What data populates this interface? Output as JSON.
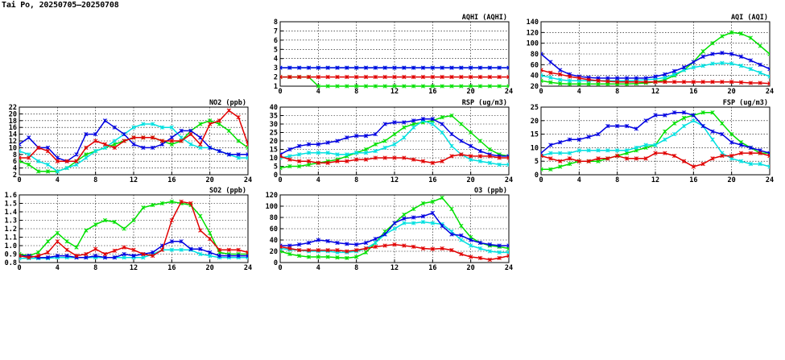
{
  "page": {
    "title": "Tai Po, 20250705—20250708"
  },
  "chart_data": [
    {
      "id": "aqhi",
      "type": "line",
      "title": "AQHI (AQHI)",
      "ylim": [
        1,
        8
      ],
      "yticks": [
        1,
        2,
        3,
        4,
        5,
        6,
        7,
        8
      ],
      "xlim": [
        0,
        24
      ],
      "xticks": [
        0,
        4,
        8,
        12,
        16,
        20,
        24
      ],
      "x": [
        0,
        1,
        2,
        3,
        4,
        5,
        6,
        7,
        8,
        9,
        10,
        11,
        12,
        13,
        14,
        15,
        16,
        17,
        18,
        19,
        20,
        21,
        22,
        23,
        24
      ],
      "series": [
        {
          "color": "#00e000",
          "values": [
            2,
            2,
            2,
            2,
            1,
            1,
            1,
            1,
            1,
            1,
            1,
            1,
            1,
            1,
            1,
            1,
            1,
            1,
            1,
            1,
            1,
            1,
            1,
            1,
            1
          ]
        },
        {
          "color": "#00e0e0",
          "values": [
            3,
            3,
            3,
            3,
            3,
            3,
            3,
            3,
            3,
            3,
            3,
            3,
            3,
            3,
            3,
            3,
            3,
            3,
            3,
            3,
            3,
            3,
            3,
            3,
            3
          ]
        },
        {
          "color": "#0000e0",
          "values": [
            3,
            3,
            3,
            3,
            3,
            3,
            3,
            3,
            3,
            3,
            3,
            3,
            3,
            3,
            3,
            3,
            3,
            3,
            3,
            3,
            3,
            3,
            3,
            3,
            3
          ]
        },
        {
          "color": "#e00000",
          "values": [
            2,
            2,
            2,
            2,
            2,
            2,
            2,
            2,
            2,
            2,
            2,
            2,
            2,
            2,
            2,
            2,
            2,
            2,
            2,
            2,
            2,
            2,
            2,
            2,
            2
          ]
        }
      ]
    },
    {
      "id": "aqi",
      "type": "line",
      "title": "AQI (AQI)",
      "ylim": [
        20,
        140
      ],
      "yticks": [
        20,
        40,
        60,
        80,
        100,
        120,
        140
      ],
      "xlim": [
        0,
        24
      ],
      "xticks": [
        0,
        4,
        8,
        12,
        16,
        20,
        24
      ],
      "x": [
        0,
        1,
        2,
        3,
        4,
        5,
        6,
        7,
        8,
        9,
        10,
        11,
        12,
        13,
        14,
        15,
        16,
        17,
        18,
        19,
        20,
        21,
        22,
        23,
        24
      ],
      "series": [
        {
          "color": "#00e000",
          "values": [
            30,
            27,
            25,
            24,
            24,
            24,
            24,
            24,
            24,
            24,
            25,
            26,
            28,
            32,
            40,
            50,
            65,
            85,
            100,
            113,
            120,
            118,
            110,
            95,
            80
          ]
        },
        {
          "color": "#00e0e0",
          "values": [
            40,
            36,
            32,
            30,
            30,
            30,
            30,
            30,
            30,
            30,
            31,
            32,
            33,
            36,
            42,
            50,
            55,
            58,
            62,
            63,
            62,
            58,
            52,
            45,
            38
          ]
        },
        {
          "color": "#0000e0",
          "values": [
            80,
            65,
            50,
            42,
            38,
            36,
            35,
            35,
            35,
            35,
            35,
            35,
            38,
            42,
            48,
            55,
            65,
            75,
            80,
            82,
            80,
            75,
            68,
            60,
            52
          ]
        },
        {
          "color": "#e00000",
          "values": [
            50,
            45,
            42,
            38,
            35,
            32,
            30,
            29,
            28,
            28,
            28,
            28,
            28,
            28,
            28,
            28,
            28,
            28,
            28,
            28,
            28,
            27,
            26,
            26,
            25
          ]
        }
      ]
    },
    {
      "id": "no2",
      "type": "line",
      "title": "NO2 (ppb)",
      "ylim": [
        2,
        22
      ],
      "yticks": [
        2,
        4,
        6,
        8,
        10,
        12,
        14,
        16,
        18,
        20,
        22
      ],
      "xlim": [
        0,
        24
      ],
      "xticks": [
        0,
        4,
        8,
        12,
        16,
        20,
        24
      ],
      "x": [
        0,
        1,
        2,
        3,
        4,
        5,
        6,
        7,
        8,
        9,
        10,
        11,
        12,
        13,
        14,
        15,
        16,
        17,
        18,
        19,
        20,
        21,
        22,
        23,
        24
      ],
      "series": [
        {
          "color": "#00e000",
          "values": [
            6,
            5,
            3,
            3,
            3,
            4,
            6,
            8,
            9,
            10,
            11,
            12,
            13,
            13,
            13,
            12,
            11,
            12,
            15,
            17,
            18,
            17,
            15,
            12,
            10
          ]
        },
        {
          "color": "#00e0e0",
          "values": [
            9,
            8,
            6,
            5,
            3,
            4,
            5,
            7,
            9,
            10,
            12,
            14,
            16,
            17,
            17,
            16,
            16,
            13,
            11,
            10,
            10,
            9,
            8,
            7,
            7
          ]
        },
        {
          "color": "#0000e0",
          "values": [
            11,
            13,
            10,
            10,
            7,
            6,
            8,
            14,
            14,
            18,
            16,
            14,
            11,
            10,
            10,
            11,
            13,
            15,
            15,
            13,
            10,
            9,
            8,
            8,
            8
          ]
        },
        {
          "color": "#e00000",
          "values": [
            7,
            7,
            10,
            9,
            6,
            6,
            6,
            10,
            12,
            11,
            10,
            12,
            13,
            13,
            13,
            12,
            12,
            12,
            14,
            11,
            17,
            18,
            21,
            19,
            11
          ]
        }
      ]
    },
    {
      "id": "rsp",
      "type": "line",
      "title": "RSP (ug/m3)",
      "ylim": [
        0,
        40
      ],
      "yticks": [
        0,
        5,
        10,
        15,
        20,
        25,
        30,
        35,
        40
      ],
      "xlim": [
        0,
        24
      ],
      "xticks": [
        0,
        4,
        8,
        12,
        16,
        20,
        24
      ],
      "x": [
        0,
        1,
        2,
        3,
        4,
        5,
        6,
        7,
        8,
        9,
        10,
        11,
        12,
        13,
        14,
        15,
        16,
        17,
        18,
        19,
        20,
        21,
        22,
        23,
        24
      ],
      "series": [
        {
          "color": "#00e000",
          "values": [
            4,
            5,
            5,
            6,
            7,
            8,
            9,
            11,
            13,
            15,
            18,
            20,
            24,
            28,
            30,
            31,
            32,
            34,
            35,
            30,
            25,
            20,
            15,
            12,
            11
          ]
        },
        {
          "color": "#00e0e0",
          "values": [
            10,
            11,
            12,
            13,
            13,
            13,
            12,
            12,
            13,
            13,
            14,
            16,
            18,
            22,
            28,
            32,
            30,
            25,
            17,
            12,
            9,
            8,
            7,
            6,
            6
          ]
        },
        {
          "color": "#0000e0",
          "values": [
            12,
            15,
            17,
            18,
            18,
            19,
            20,
            22,
            23,
            23,
            24,
            30,
            31,
            31,
            32,
            33,
            33,
            30,
            24,
            20,
            17,
            14,
            12,
            11,
            11
          ]
        },
        {
          "color": "#e00000",
          "values": [
            11,
            9,
            8,
            8,
            7,
            7,
            8,
            8,
            9,
            9,
            10,
            10,
            10,
            10,
            9,
            8,
            7,
            8,
            11,
            12,
            11,
            11,
            11,
            10,
            10
          ]
        }
      ]
    },
    {
      "id": "fsp",
      "type": "line",
      "title": "FSP (ug/m3)",
      "ylim": [
        0,
        25
      ],
      "yticks": [
        0,
        5,
        10,
        15,
        20,
        25
      ],
      "xlim": [
        0,
        24
      ],
      "xticks": [
        0,
        4,
        8,
        12,
        16,
        20,
        24
      ],
      "x": [
        0,
        1,
        2,
        3,
        4,
        5,
        6,
        7,
        8,
        9,
        10,
        11,
        12,
        13,
        14,
        15,
        16,
        17,
        18,
        19,
        20,
        21,
        22,
        23,
        24
      ],
      "series": [
        {
          "color": "#00e000",
          "values": [
            2,
            2,
            3,
            4,
            5,
            5,
            5,
            6,
            7,
            8,
            9,
            10,
            11,
            16,
            19,
            21,
            22,
            23,
            23,
            19,
            15,
            12,
            10,
            8,
            8
          ]
        },
        {
          "color": "#00e0e0",
          "values": [
            7,
            8,
            8,
            8,
            9,
            9,
            9,
            9,
            9,
            9,
            10,
            11,
            11,
            13,
            15,
            18,
            20,
            18,
            13,
            8,
            6,
            5,
            4,
            4,
            3
          ]
        },
        {
          "color": "#0000e0",
          "values": [
            8,
            11,
            12,
            13,
            13,
            14,
            15,
            18,
            18,
            18,
            17,
            20,
            22,
            22,
            23,
            23,
            22,
            18,
            16,
            15,
            12,
            11,
            10,
            9,
            8
          ]
        },
        {
          "color": "#e00000",
          "values": [
            7,
            6,
            5,
            6,
            5,
            5,
            6,
            6,
            7,
            6,
            6,
            6,
            8,
            8,
            7,
            5,
            3,
            4,
            6,
            7,
            7,
            8,
            8,
            8,
            7
          ]
        }
      ]
    },
    {
      "id": "so2",
      "type": "line",
      "title": "SO2 (ppb)",
      "ylim": [
        0.8,
        1.6
      ],
      "yticks": [
        0.8,
        0.9,
        1.0,
        1.1,
        1.2,
        1.3,
        1.4,
        1.5,
        1.6
      ],
      "ytickLabels": [
        "0.8",
        "0.9",
        "1.0",
        "1.1",
        "1.2",
        "1.3",
        "1.4",
        "1.5",
        "1.6"
      ],
      "xlim": [
        0,
        24
      ],
      "xticks": [
        0,
        4,
        8,
        12,
        16,
        20,
        24
      ],
      "x": [
        0,
        1,
        2,
        3,
        4,
        5,
        6,
        7,
        8,
        9,
        10,
        11,
        12,
        13,
        14,
        15,
        16,
        17,
        18,
        19,
        20,
        21,
        22,
        23,
        24
      ],
      "series": [
        {
          "color": "#00e000",
          "values": [
            0.9,
            0.88,
            0.92,
            1.05,
            1.15,
            1.05,
            0.98,
            1.18,
            1.25,
            1.3,
            1.28,
            1.2,
            1.3,
            1.45,
            1.48,
            1.5,
            1.52,
            1.5,
            1.48,
            1.35,
            1.15,
            0.92,
            0.9,
            0.9,
            0.9
          ]
        },
        {
          "color": "#00e0e0",
          "values": [
            0.85,
            0.85,
            0.85,
            0.85,
            0.86,
            0.86,
            0.86,
            0.86,
            0.86,
            0.86,
            0.86,
            0.86,
            0.86,
            0.86,
            0.9,
            0.95,
            0.95,
            0.95,
            0.95,
            0.9,
            0.88,
            0.86,
            0.86,
            0.86,
            0.86
          ]
        },
        {
          "color": "#0000e0",
          "values": [
            0.88,
            0.88,
            0.86,
            0.86,
            0.88,
            0.88,
            0.86,
            0.86,
            0.88,
            0.86,
            0.86,
            0.9,
            0.88,
            0.9,
            0.92,
            1.0,
            1.05,
            1.05,
            0.96,
            0.96,
            0.92,
            0.88,
            0.88,
            0.88,
            0.88
          ]
        },
        {
          "color": "#e00000",
          "values": [
            0.88,
            0.86,
            0.88,
            0.92,
            1.05,
            0.95,
            0.88,
            0.9,
            0.96,
            0.9,
            0.94,
            0.98,
            0.95,
            0.9,
            0.88,
            0.95,
            1.3,
            1.52,
            1.5,
            1.18,
            1.08,
            0.95,
            0.95,
            0.95,
            0.92
          ]
        }
      ]
    },
    {
      "id": "o3",
      "type": "line",
      "title": "O3 (ppb)",
      "ylim": [
        0,
        120
      ],
      "yticks": [
        0,
        20,
        40,
        60,
        80,
        100,
        120
      ],
      "xlim": [
        0,
        24
      ],
      "xticks": [
        0,
        4,
        8,
        12,
        16,
        20,
        24
      ],
      "x": [
        0,
        1,
        2,
        3,
        4,
        5,
        6,
        7,
        8,
        9,
        10,
        11,
        12,
        13,
        14,
        15,
        16,
        17,
        18,
        19,
        20,
        21,
        22,
        23,
        24
      ],
      "series": [
        {
          "color": "#00e000",
          "values": [
            20,
            15,
            12,
            10,
            10,
            10,
            9,
            8,
            10,
            18,
            35,
            55,
            70,
            85,
            95,
            105,
            108,
            115,
            95,
            65,
            45,
            35,
            30,
            28,
            25
          ]
        },
        {
          "color": "#00e0e0",
          "values": [
            25,
            23,
            22,
            20,
            20,
            20,
            18,
            18,
            20,
            25,
            35,
            50,
            60,
            70,
            70,
            72,
            70,
            68,
            55,
            40,
            30,
            25,
            20,
            18,
            18
          ]
        },
        {
          "color": "#0000e0",
          "values": [
            30,
            30,
            32,
            35,
            40,
            38,
            35,
            33,
            32,
            35,
            42,
            50,
            70,
            78,
            80,
            82,
            88,
            65,
            50,
            48,
            40,
            35,
            32,
            30,
            30
          ]
        },
        {
          "color": "#e00000",
          "values": [
            28,
            25,
            22,
            22,
            22,
            22,
            22,
            20,
            22,
            25,
            28,
            30,
            32,
            30,
            28,
            25,
            24,
            25,
            22,
            15,
            10,
            8,
            5,
            8,
            12
          ]
        }
      ]
    }
  ]
}
